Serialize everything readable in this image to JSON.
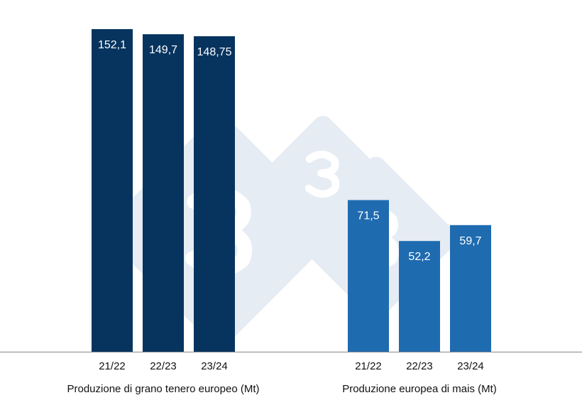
{
  "chart_data": [
    {
      "type": "bar",
      "title": "",
      "xlabel": "Produzione di grano tenero europeo (Mt)",
      "ylabel": "",
      "categories": [
        "21/22",
        "22/23",
        "23/24"
      ],
      "values": [
        152.1,
        149.7,
        148.75
      ],
      "data_labels": [
        "152,1",
        "149,7",
        "148,75"
      ],
      "color": "#06345f",
      "ylim": [
        0,
        152.1
      ],
      "grid": false
    },
    {
      "type": "bar",
      "title": "",
      "xlabel": "Produzione europea di mais (Mt)",
      "ylabel": "",
      "categories": [
        "21/22",
        "22/23",
        "23/24"
      ],
      "values": [
        71.5,
        52.2,
        59.7
      ],
      "data_labels": [
        "71,5",
        "52,2",
        "59,7"
      ],
      "color": "#1f6bb0",
      "ylim": [
        0,
        152.1
      ],
      "grid": false
    }
  ],
  "watermark": {
    "text": "3",
    "color": "#e6ecf3"
  }
}
